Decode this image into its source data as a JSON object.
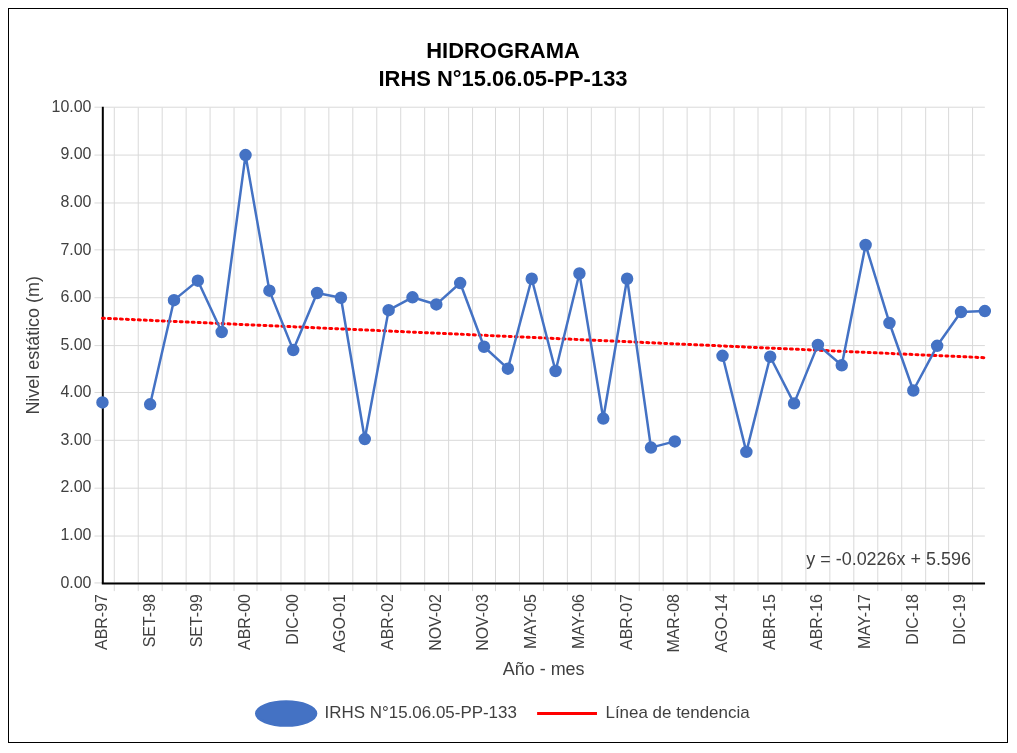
{
  "chart_data": {
    "type": "line",
    "title": "HIDROGRAMA",
    "subtitle": "IRHS N°15.06.05-PP-133",
    "xlabel": "Año - mes",
    "ylabel": "Nivel estático (m)",
    "categories": [
      "ABR-97",
      null,
      "SET-98",
      null,
      "SET-99",
      null,
      "ABR-00",
      null,
      "DIC-00",
      null,
      "AGO-01",
      null,
      "ABR-02",
      null,
      "NOV-02",
      null,
      "NOV-03",
      null,
      "MAY-05",
      null,
      "MAY-06",
      null,
      "ABR-07",
      null,
      "MAR-08",
      null,
      "AGO-14",
      null,
      "ABR-15",
      null,
      "ABR-16",
      null,
      "MAY-17",
      null,
      "DIC-18",
      null,
      "DIC-19",
      null
    ],
    "series": [
      {
        "name": "IRHS N°15.06.05-PP-133",
        "color": "#4472c4",
        "marker": "circle",
        "line_style": "solid",
        "values": [
          3.8,
          null,
          3.76,
          5.95,
          6.36,
          5.28,
          9.0,
          6.15,
          4.9,
          6.1,
          6.0,
          3.03,
          5.74,
          6.01,
          5.86,
          6.31,
          4.97,
          4.51,
          6.4,
          4.46,
          6.51,
          3.46,
          6.4,
          2.85,
          2.98,
          null,
          4.78,
          2.76,
          4.76,
          3.78,
          5.01,
          4.58,
          7.11,
          5.47,
          4.05,
          4.99,
          5.7,
          5.72
        ]
      },
      {
        "name": "Línea de tendencia",
        "color": "#ff0000",
        "marker": "none",
        "line_style": "dotted",
        "values": [
          5.57,
          null,
          null,
          null,
          null,
          null,
          null,
          null,
          null,
          null,
          null,
          null,
          null,
          null,
          null,
          null,
          null,
          null,
          null,
          null,
          null,
          null,
          null,
          null,
          null,
          null,
          null,
          null,
          null,
          null,
          null,
          null,
          null,
          null,
          null,
          null,
          null,
          4.74
        ]
      }
    ],
    "ylim": [
      0,
      10
    ],
    "yticks": [
      {
        "value": 0,
        "label": "0.00"
      },
      {
        "value": 1,
        "label": "1.00"
      },
      {
        "value": 2,
        "label": "2.00"
      },
      {
        "value": 3,
        "label": "3.00"
      },
      {
        "value": 4,
        "label": "4.00"
      },
      {
        "value": 5,
        "label": "5.00"
      },
      {
        "value": 6,
        "label": "6.00"
      },
      {
        "value": 7,
        "label": "7.00"
      },
      {
        "value": 8,
        "label": "8.00"
      },
      {
        "value": 9,
        "label": "9.00"
      },
      {
        "value": 10,
        "label": "10.00"
      }
    ],
    "grid": true,
    "legend": "bottom",
    "annotations": [
      "y = -0.0226x + 5.596"
    ]
  }
}
